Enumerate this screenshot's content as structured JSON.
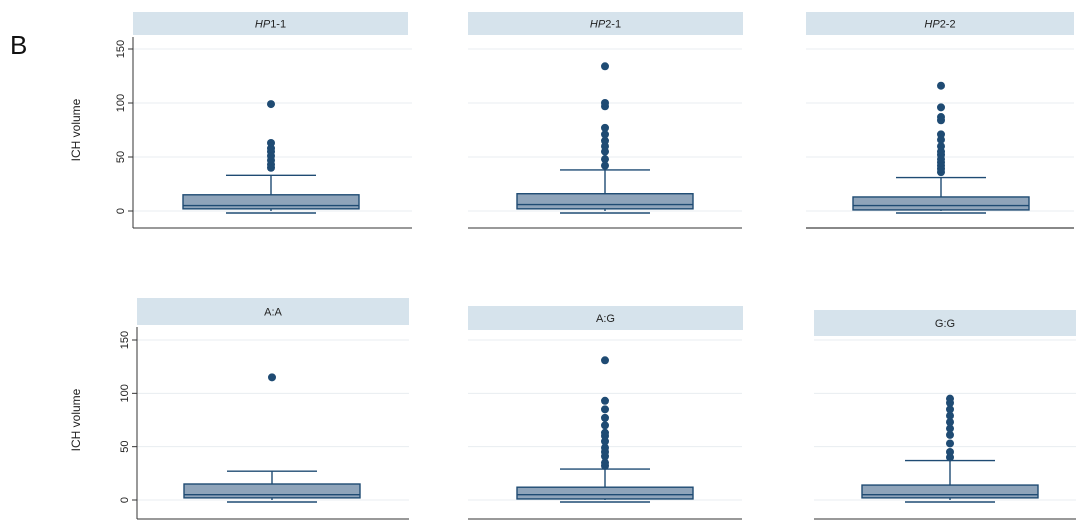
{
  "figure": {
    "panel_letter": "B"
  },
  "colors": {
    "strip": "#d6e3ec",
    "box_fill": "#8fa4ba",
    "box_stroke": "#1f4b73",
    "outlier": "#1f4b73",
    "grid": "#e8edf0",
    "axis": "#333333"
  },
  "chart_data": [
    {
      "type": "box",
      "strip_title": "HP1-1",
      "strip_prefix_italic": "HP",
      "strip_suffix": "1-1",
      "ylabel": "ICH volume",
      "yticks": [
        0,
        50,
        100,
        150
      ],
      "ylim": [
        -15,
        150
      ],
      "box": {
        "whisker_low": 0,
        "q1": 2,
        "median": 5,
        "q3": 15,
        "whisker_high": 33
      },
      "outliers": [
        40,
        43,
        47,
        51,
        55,
        58,
        63,
        99
      ]
    },
    {
      "type": "box",
      "strip_title": "HP2-1",
      "strip_prefix_italic": "HP",
      "strip_suffix": "2-1",
      "ylabel": "",
      "yticks": [
        0,
        50,
        100,
        150
      ],
      "ylim": [
        -15,
        150
      ],
      "box": {
        "whisker_low": 0,
        "q1": 2,
        "median": 6,
        "q3": 16,
        "whisker_high": 38
      },
      "outliers": [
        42,
        48,
        55,
        60,
        65,
        71,
        77,
        97,
        100,
        134
      ]
    },
    {
      "type": "box",
      "strip_title": "HP2-2",
      "strip_prefix_italic": "HP",
      "strip_suffix": "2-2",
      "ylabel": "",
      "yticks": [
        0,
        50,
        100,
        150
      ],
      "ylim": [
        -15,
        150
      ],
      "box": {
        "whisker_low": 0,
        "q1": 1,
        "median": 5,
        "q3": 13,
        "whisker_high": 31
      },
      "outliers": [
        36,
        39,
        42,
        45,
        48,
        52,
        55,
        60,
        66,
        71,
        84,
        87,
        96,
        116
      ]
    },
    {
      "type": "box",
      "strip_title": "A:A",
      "ylabel": "ICH volume",
      "yticks": [
        0,
        50,
        100,
        150
      ],
      "ylim": [
        -15,
        150
      ],
      "box": {
        "whisker_low": 0,
        "q1": 2,
        "median": 5,
        "q3": 15,
        "whisker_high": 27
      },
      "outliers": [
        115
      ]
    },
    {
      "type": "box",
      "strip_title": "A:G",
      "ylabel": "",
      "yticks": [
        0,
        50,
        100,
        150
      ],
      "ylim": [
        -15,
        150
      ],
      "box": {
        "whisker_low": 0,
        "q1": 1,
        "median": 5,
        "q3": 12,
        "whisker_high": 29
      },
      "outliers": [
        32,
        35,
        41,
        45,
        49,
        55,
        60,
        63,
        70,
        77,
        85,
        93,
        131
      ]
    },
    {
      "type": "box",
      "strip_title": "G:G",
      "ylabel": "",
      "yticks": [
        0,
        50,
        100,
        150
      ],
      "ylim": [
        -15,
        150
      ],
      "box": {
        "whisker_low": 0,
        "q1": 2,
        "median": 5,
        "q3": 14,
        "whisker_high": 37
      },
      "outliers": [
        40,
        45,
        53,
        61,
        67,
        73,
        79,
        85,
        91,
        95
      ]
    }
  ]
}
